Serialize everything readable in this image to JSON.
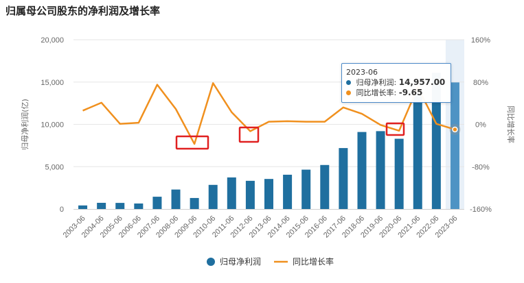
{
  "title": "归属母公司股东的净利润及增长率",
  "colors": {
    "bar": "#1f6f9f",
    "bar_highlight": "#4e93c4",
    "line": "#f0901e",
    "highlight_band": "#e8f0f8",
    "annotation_box": "#e02020"
  },
  "tooltip": {
    "period": "2023-06",
    "row1_label": "归母净利润:",
    "row1_value": "14,957.00",
    "row2_label": "同比增长率:",
    "row2_value": "-9.65"
  },
  "chart_data": {
    "type": "bar",
    "categories": [
      "2003-06",
      "2004-06",
      "2005-06",
      "2006-06",
      "2007-06",
      "2008-06",
      "2009-06",
      "2010-06",
      "2011-06",
      "2012-06",
      "2013-06",
      "2014-06",
      "2015-06",
      "2016-06",
      "2017-06",
      "2018-06",
      "2019-06",
      "2020-06",
      "2021-06",
      "2022-06",
      "2023-06"
    ],
    "series": [
      {
        "name": "归母净利润",
        "type": "bar",
        "axis": "left",
        "values": [
          420,
          730,
          720,
          650,
          1450,
          2300,
          1300,
          2850,
          3730,
          3330,
          3550,
          4050,
          4650,
          5200,
          7200,
          9100,
          9200,
          8300,
          13500,
          16100,
          14957
        ]
      },
      {
        "name": "同比增长率",
        "type": "line",
        "axis": "right",
        "values": [
          26,
          41,
          1,
          3,
          75,
          29,
          -37,
          78,
          23,
          -13,
          5,
          6,
          5,
          5,
          32,
          20,
          -1,
          -12,
          70,
          1,
          -9.65
        ]
      }
    ],
    "y_left": {
      "label": "归母净利润(亿)",
      "ticks": [
        "0",
        "5,000",
        "10,000",
        "15,000",
        "20,000"
      ],
      "range": [
        0,
        20000
      ]
    },
    "y_right": {
      "label": "同比增长率",
      "ticks": [
        "-160%",
        "-80%",
        "0%",
        "80%",
        "160%"
      ],
      "range": [
        -160,
        160
      ]
    },
    "legend": {
      "position": "bottom",
      "items": [
        "归母净利润",
        "同比增长率"
      ]
    },
    "highlight_category": "2023-06",
    "annotation_boxes": [
      "2008-06 to 2009-06",
      "2012-06",
      "2020-06"
    ]
  }
}
